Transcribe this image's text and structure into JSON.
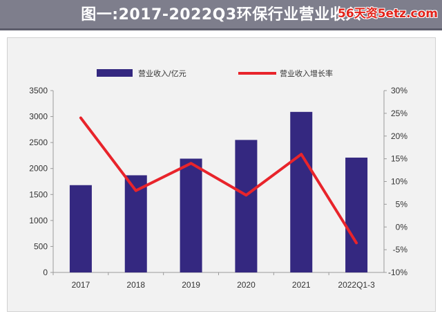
{
  "header": {
    "title": "图一:2017-2022Q3环保行业营业收入",
    "watermark": "56天资5etz.com"
  },
  "chart_data": {
    "type": "bar",
    "categories": [
      "2017",
      "2018",
      "2019",
      "2020",
      "2021",
      "2022Q1-3"
    ],
    "series": [
      {
        "name": "营业收入/亿元",
        "type": "bar",
        "axis": "left",
        "color": "#342880",
        "values": [
          1680,
          1870,
          2190,
          2550,
          3090,
          2210
        ]
      },
      {
        "name": "营业收入增长率",
        "type": "line",
        "axis": "right",
        "color": "#e8242b",
        "values": [
          24,
          8,
          14,
          7,
          16,
          -3.5
        ]
      }
    ],
    "y_left": {
      "range": [
        0,
        3500
      ],
      "ticks": [
        "0",
        "500",
        "1000",
        "1500",
        "2000",
        "2500",
        "3000",
        "3500"
      ]
    },
    "y_right": {
      "range": [
        -10,
        30
      ],
      "ticks": [
        "-10%",
        "-5%",
        "0%",
        "5%",
        "10%",
        "15%",
        "20%",
        "25%",
        "30%"
      ]
    },
    "legend_position": "top",
    "grid": false
  }
}
